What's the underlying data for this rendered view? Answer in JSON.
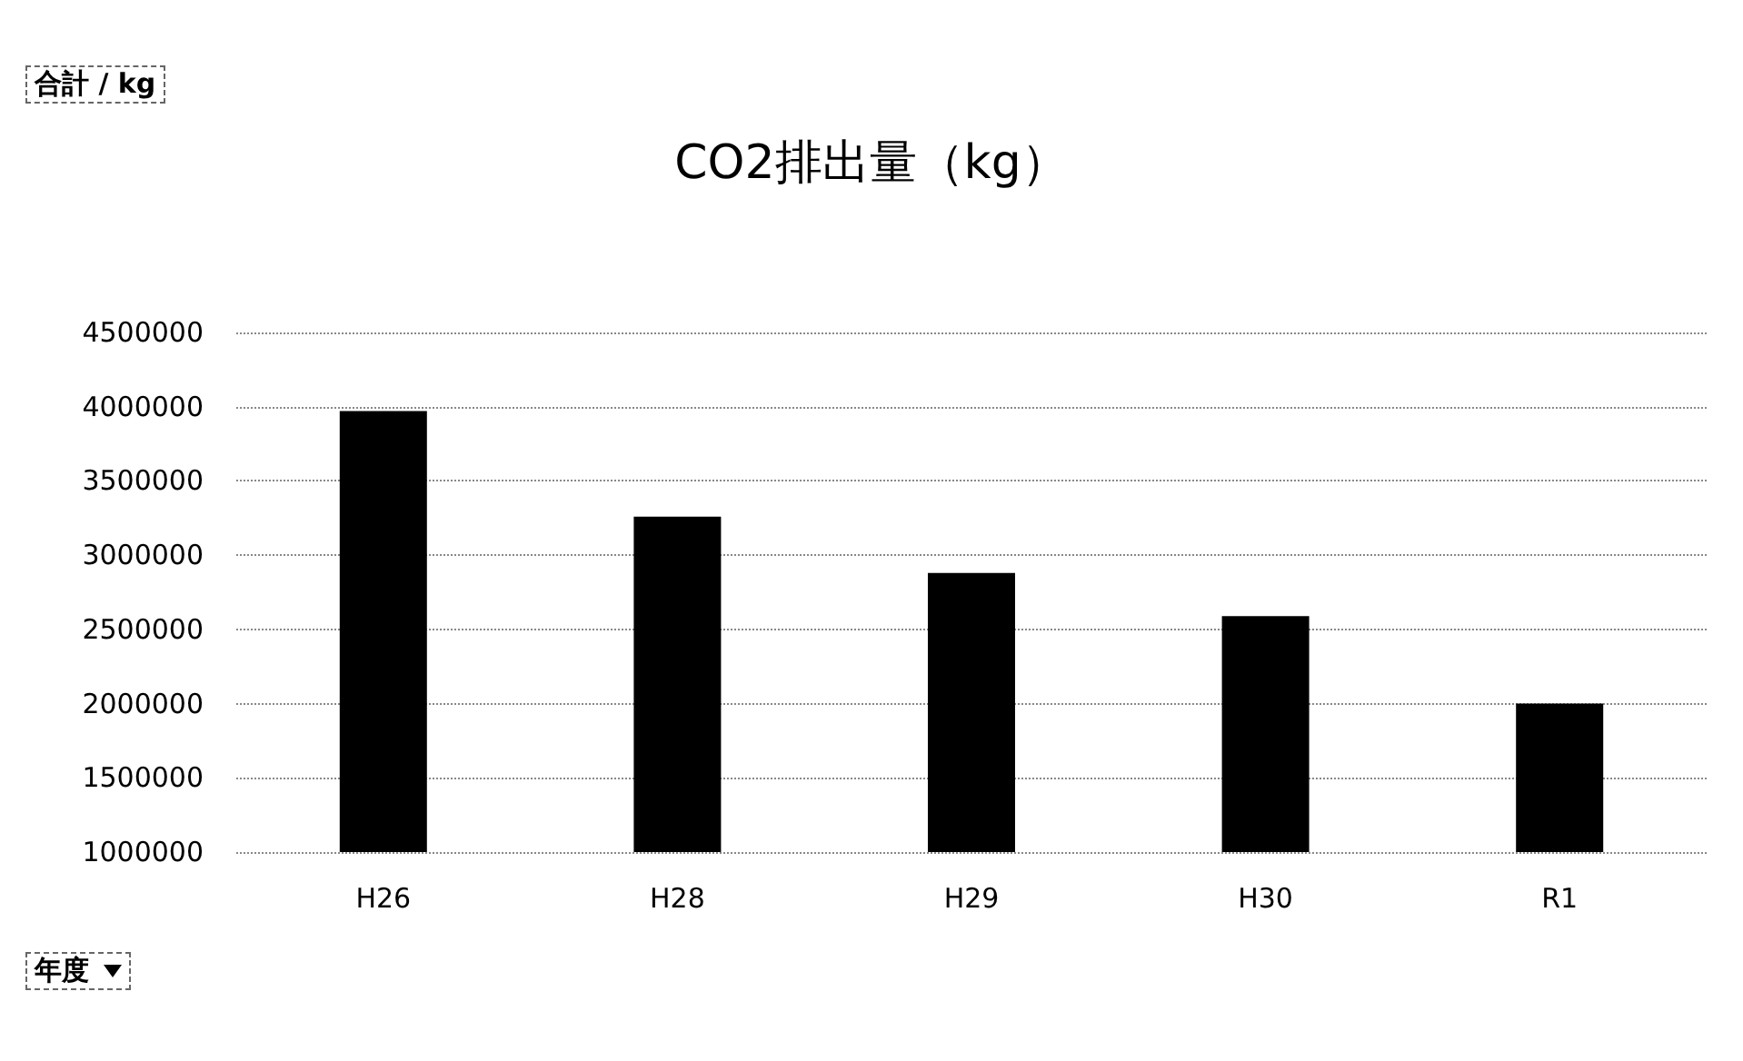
{
  "chart_data": {
    "type": "bar",
    "title": "CO2排出量（kg）",
    "annotations": [
      "合計 / kg",
      "年度"
    ],
    "categories": [
      "H26",
      "H28",
      "H29",
      "H30",
      "R1"
    ],
    "values": [
      3970000,
      3260000,
      2880000,
      2590000,
      2000000
    ],
    "color": "#000000",
    "ylim": [
      1000000,
      4500000
    ],
    "yticks": [
      1000000,
      1500000,
      2000000,
      2500000,
      3000000,
      3500000,
      4000000,
      4500000
    ],
    "grid": "y"
  }
}
